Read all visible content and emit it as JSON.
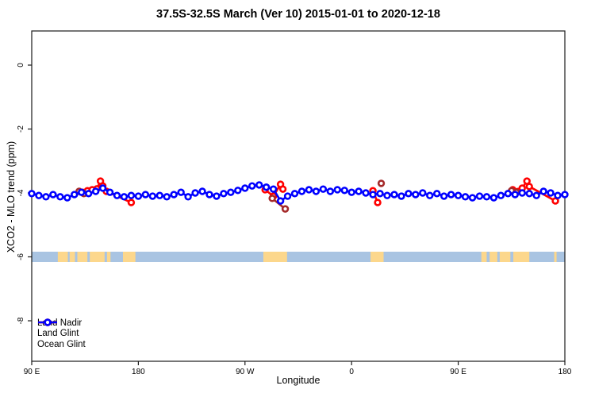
{
  "title": "37.5S-32.5S March (Ver 10)   2015-01-01 to 2020-12-18",
  "chart_data": {
    "type": "line",
    "title": "37.5S-32.5S March (Ver 10)   2015-01-01 to 2020-12-18",
    "xlabel": "Longitude",
    "ylabel": "XCO2 - MLO trend (ppm)",
    "xlim": [
      90,
      540
    ],
    "ylim": [
      -9.3,
      1.05
    ],
    "grid": false,
    "legend_position": "bottom-left",
    "x_ticks": [
      {
        "lon": 90,
        "label": "90 E"
      },
      {
        "lon": 180,
        "label": "180"
      },
      {
        "lon": 270,
        "label": "90 W"
      },
      {
        "lon": 360,
        "label": "0"
      },
      {
        "lon": 450,
        "label": "90 E"
      },
      {
        "lon": 540,
        "label": "180"
      }
    ],
    "y_ticks": [
      {
        "value": 0,
        "label": "0"
      },
      {
        "value": -2,
        "label": "-2"
      },
      {
        "value": -4,
        "label": "-4"
      },
      {
        "value": -6,
        "label": "-6"
      },
      {
        "value": -8,
        "label": "-8"
      }
    ],
    "map_strip": {
      "description": "land/ocean strip for latitude band drawn across plot at -6 ppm",
      "ocean_color": "#a9c4e2",
      "land_color": "#fcd78c",
      "value_center": -6,
      "land_segments_lon": [
        [
          112,
          120.5
        ],
        [
          122,
          126.5
        ],
        [
          128.5,
          137
        ],
        [
          139,
          151.5
        ],
        [
          153.5,
          156.5
        ],
        [
          167,
          177.5
        ],
        [
          285.5,
          305.5
        ],
        [
          376,
          387
        ],
        [
          469.5,
          474
        ],
        [
          476.5,
          483
        ],
        [
          485,
          494
        ],
        [
          496.5,
          510
        ],
        [
          531,
          533
        ]
      ]
    },
    "series": [
      {
        "name": "Land Glint",
        "color": "#ff0000",
        "marker": "open-circle",
        "segments": [
          [
            [
              133,
              -3.98
            ],
            [
              137,
              -3.93
            ],
            [
              141,
              -3.9
            ],
            [
              145,
              -3.87
            ],
            [
              148,
              -3.63
            ],
            [
              150,
              -3.78
            ],
            [
              153,
              -3.95
            ],
            [
              174,
              -4.3
            ]
          ],
          [
            [
              287,
              -3.9
            ],
            [
              294,
              -4.1
            ],
            [
              300,
              -3.73
            ],
            [
              302,
              -3.88
            ]
          ],
          [
            [
              378,
              -3.93
            ],
            [
              382,
              -4.3
            ]
          ],
          [
            [
              496,
              -3.9
            ],
            [
              504,
              -3.85
            ],
            [
              508,
              -3.63
            ],
            [
              510,
              -3.8
            ],
            [
              532,
              -4.25
            ]
          ]
        ]
      },
      {
        "name": "Land Nadir",
        "color": "#a52a2a",
        "marker": "open-circle",
        "segments": [
          [
            [
              130,
              -3.95
            ],
            [
              134,
              -4.02
            ]
          ],
          [
            [
              293,
              -4.17
            ],
            [
              304,
              -4.5
            ]
          ],
          [
            [
              385,
              -3.7
            ]
          ],
          [
            [
              495,
              -3.93
            ],
            [
              499,
              -3.98
            ]
          ]
        ]
      },
      {
        "name": "Ocean Glint",
        "color": "#0000ff",
        "marker": "open-circle",
        "segments": [
          [
            [
              90,
              -4.02
            ],
            [
              96,
              -4.08
            ],
            [
              102,
              -4.12
            ],
            [
              108,
              -4.05
            ],
            [
              114,
              -4.12
            ],
            [
              120,
              -4.15
            ],
            [
              126,
              -4.05
            ],
            [
              132,
              -3.98
            ],
            [
              138,
              -4.02
            ],
            [
              144,
              -3.95
            ],
            [
              150,
              -3.85
            ],
            [
              156,
              -3.98
            ],
            [
              162,
              -4.08
            ],
            [
              168,
              -4.12
            ],
            [
              174,
              -4.08
            ],
            [
              180,
              -4.1
            ],
            [
              186,
              -4.05
            ],
            [
              192,
              -4.1
            ],
            [
              198,
              -4.08
            ],
            [
              204,
              -4.12
            ],
            [
              210,
              -4.05
            ],
            [
              216,
              -3.98
            ],
            [
              222,
              -4.12
            ],
            [
              228,
              -4.0
            ],
            [
              234,
              -3.95
            ],
            [
              240,
              -4.05
            ],
            [
              246,
              -4.1
            ],
            [
              252,
              -4.02
            ],
            [
              258,
              -3.98
            ],
            [
              264,
              -3.92
            ],
            [
              270,
              -3.85
            ],
            [
              276,
              -3.78
            ],
            [
              282,
              -3.75
            ],
            [
              288,
              -3.82
            ],
            [
              294,
              -3.88
            ],
            [
              300,
              -4.25
            ],
            [
              306,
              -4.1
            ],
            [
              312,
              -4.02
            ],
            [
              318,
              -3.95
            ],
            [
              324,
              -3.9
            ],
            [
              330,
              -3.95
            ],
            [
              336,
              -3.88
            ],
            [
              342,
              -3.95
            ],
            [
              348,
              -3.9
            ],
            [
              354,
              -3.92
            ],
            [
              360,
              -3.98
            ],
            [
              366,
              -3.95
            ],
            [
              372,
              -4.0
            ],
            [
              378,
              -4.05
            ],
            [
              384,
              -4.02
            ],
            [
              390,
              -4.08
            ],
            [
              396,
              -4.05
            ],
            [
              402,
              -4.1
            ],
            [
              408,
              -4.02
            ],
            [
              414,
              -4.05
            ],
            [
              420,
              -4.0
            ],
            [
              426,
              -4.08
            ],
            [
              432,
              -4.02
            ],
            [
              438,
              -4.1
            ],
            [
              444,
              -4.05
            ],
            [
              450,
              -4.08
            ],
            [
              456,
              -4.12
            ],
            [
              462,
              -4.15
            ],
            [
              468,
              -4.1
            ],
            [
              474,
              -4.12
            ],
            [
              480,
              -4.15
            ],
            [
              486,
              -4.08
            ],
            [
              492,
              -4.02
            ],
            [
              498,
              -4.05
            ],
            [
              504,
              -4.0
            ],
            [
              510,
              -4.02
            ],
            [
              516,
              -4.08
            ],
            [
              522,
              -3.95
            ],
            [
              528,
              -4.0
            ],
            [
              534,
              -4.08
            ],
            [
              540,
              -4.05
            ]
          ]
        ]
      }
    ],
    "legend": {
      "entries": [
        {
          "label": "Land Nadir",
          "color": "#a52a2a"
        },
        {
          "label": "Land Glint",
          "color": "#ff0000"
        },
        {
          "label": "Ocean Glint",
          "color": "#0000ff"
        }
      ]
    }
  }
}
